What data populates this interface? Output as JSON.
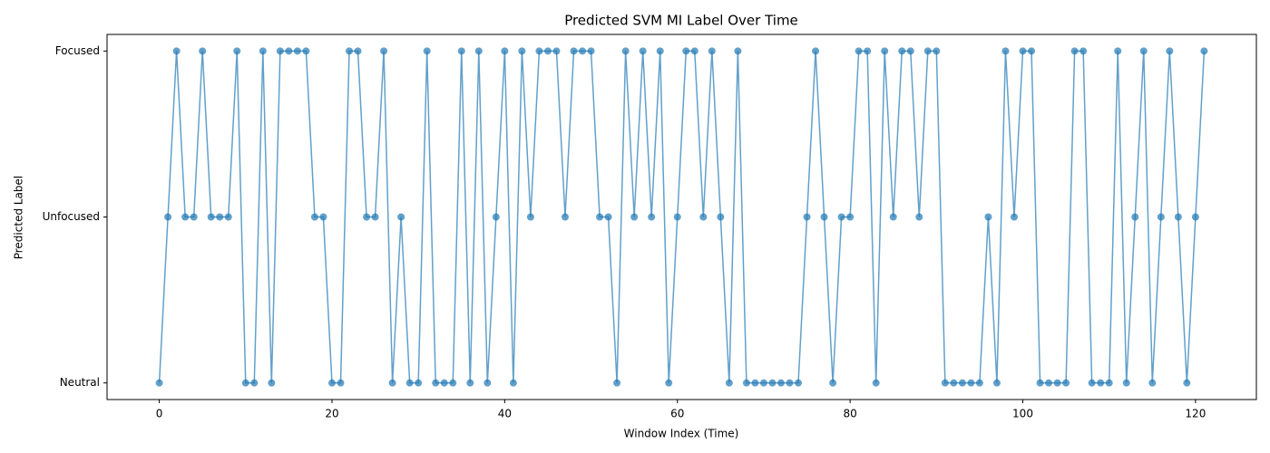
{
  "chart_data": {
    "type": "line",
    "title": "Predicted SVM MI Label Over Time",
    "xlabel": "Window Index (Time)",
    "ylabel": "Predicted Label",
    "x": [
      0,
      1,
      2,
      3,
      4,
      5,
      6,
      7,
      8,
      9,
      10,
      11,
      12,
      13,
      14,
      15,
      16,
      17,
      18,
      19,
      20,
      21,
      22,
      23,
      24,
      25,
      26,
      27,
      28,
      29,
      30,
      31,
      32,
      33,
      34,
      35,
      36,
      37,
      38,
      39,
      40,
      41,
      42,
      43,
      44,
      45,
      46,
      47,
      48,
      49,
      50,
      51,
      52,
      53,
      54,
      55,
      56,
      57,
      58,
      59,
      60,
      61,
      62,
      63,
      64,
      65,
      66,
      67,
      68,
      69,
      70,
      71,
      72,
      73,
      74,
      75,
      76,
      77,
      78,
      79,
      80,
      81,
      82,
      83,
      84,
      85,
      86,
      87,
      88,
      89,
      90,
      91,
      92,
      93,
      94,
      95,
      96,
      97,
      98,
      99,
      100,
      101,
      102,
      103,
      104,
      105,
      106,
      107,
      108,
      109,
      110,
      111,
      112,
      113,
      114,
      115,
      116,
      117,
      118,
      119,
      120,
      121
    ],
    "series": [
      {
        "color": "#1f77b4",
        "values": [
          0,
          1,
          2,
          1,
          1,
          2,
          1,
          1,
          1,
          2,
          0,
          0,
          2,
          0,
          2,
          2,
          2,
          2,
          1,
          1,
          0,
          0,
          2,
          2,
          1,
          1,
          2,
          0,
          1,
          0,
          0,
          2,
          0,
          0,
          0,
          2,
          0,
          2,
          0,
          1,
          2,
          0,
          2,
          1,
          2,
          2,
          2,
          1,
          2,
          2,
          2,
          1,
          1,
          0,
          2,
          1,
          2,
          1,
          2,
          0,
          1,
          2,
          2,
          1,
          2,
          1,
          0,
          2,
          0,
          0,
          0,
          0,
          0,
          0,
          0,
          1,
          2,
          1,
          0,
          1,
          1,
          2,
          2,
          0,
          2,
          1,
          2,
          2,
          1,
          2,
          2,
          0,
          0,
          0,
          0,
          0,
          1,
          0,
          2,
          1,
          2,
          2,
          0,
          0,
          0,
          0,
          2,
          2,
          0,
          0,
          0,
          2,
          0,
          1,
          2,
          0,
          1,
          2,
          1,
          0,
          1,
          2
        ]
      }
    ],
    "xlim": [
      -6.05,
      127.05
    ],
    "xticks": [
      0,
      20,
      40,
      60,
      80,
      100,
      120
    ],
    "ylim": [
      -0.1,
      2.1
    ],
    "yticks": [
      {
        "value": 0,
        "label": "Neutral"
      },
      {
        "value": 1,
        "label": "Unfocused"
      },
      {
        "value": 2,
        "label": "Focused"
      }
    ],
    "grid": false
  }
}
